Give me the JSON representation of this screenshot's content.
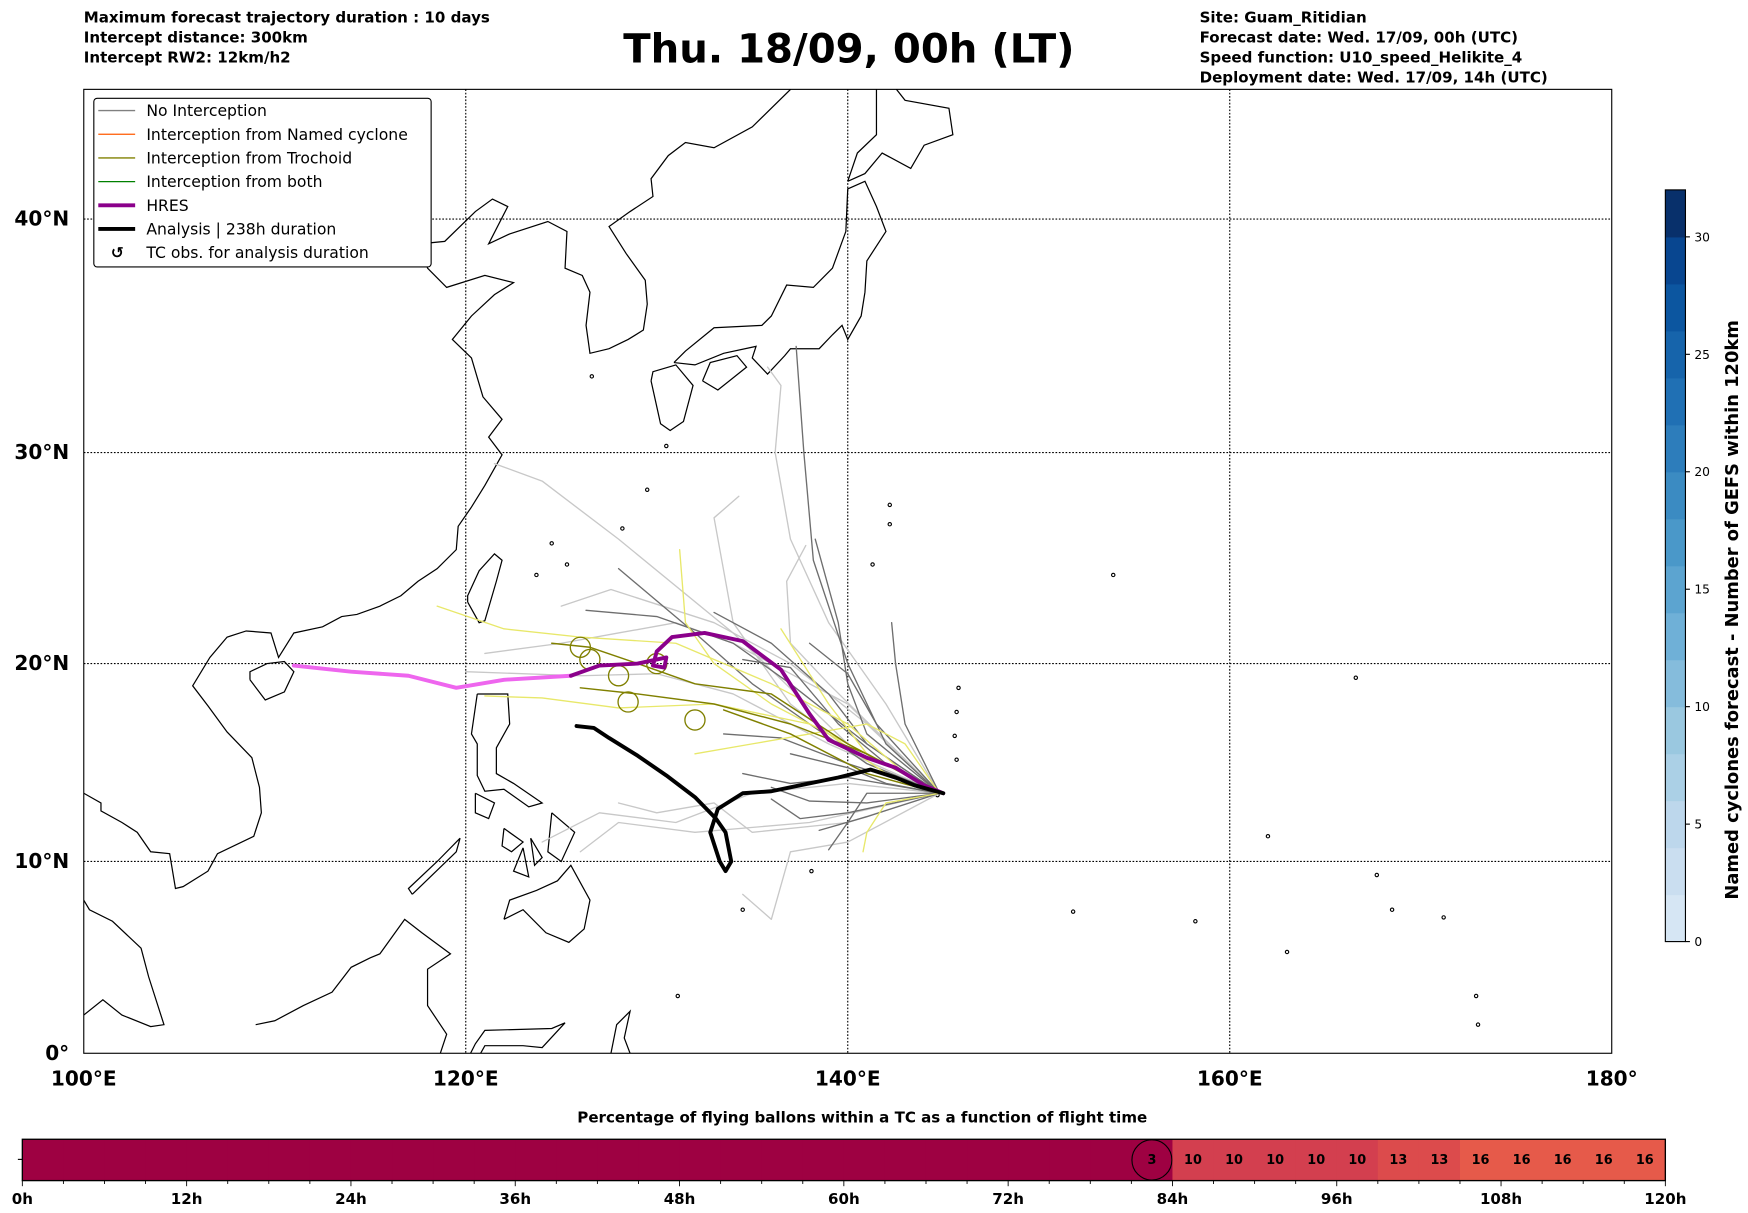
{
  "header": {
    "left": [
      "Maximum forecast trajectory duration : 10 days",
      "Intercept distance: 300km",
      "Intercept RW2: 12km/h2"
    ],
    "title": "Thu. 18/09, 00h (LT)",
    "right": [
      "Site: Guam_Ritidian",
      "Forecast date: Wed. 17/09, 00h (UTC)",
      "Speed function: U10_speed_Helikite_4",
      "Deployment date: Wed. 17/09, 14h (UTC)"
    ]
  },
  "map": {
    "lon_labels": [
      "100°E",
      "120°E",
      "140°E",
      "160°E",
      "180°"
    ],
    "lat_labels": [
      "0°",
      "10°N",
      "20°N",
      "30°N",
      "40°N"
    ],
    "legend": [
      {
        "label": "No Interception",
        "color": "#808080",
        "kind": "thin"
      },
      {
        "label": "Interception from Named cyclone",
        "color": "#ff5a00",
        "kind": "thin"
      },
      {
        "label": "Interception from Trochoid",
        "color": "#808000",
        "kind": "thin"
      },
      {
        "label": "Interception from both",
        "color": "#008000",
        "kind": "thin"
      },
      {
        "label": "HRES",
        "color": "#8b008b",
        "kind": "thick"
      },
      {
        "label": "Analysis | 238h duration",
        "color": "#000000",
        "kind": "thick"
      },
      {
        "label": "TC obs. for analysis duration",
        "color": "#000000",
        "kind": "symbol"
      }
    ]
  },
  "colorbar": {
    "label": "Named cyclones forecast - Number of GEFS within 120km",
    "ticks": [
      "0",
      "5",
      "10",
      "15",
      "20",
      "25",
      "30"
    ],
    "range": [
      0,
      32
    ]
  },
  "timeline": {
    "title": "Percentage of flying ballons within a TC as a function of flight time",
    "tick_labels": [
      "0h",
      "12h",
      "24h",
      "36h",
      "48h",
      "60h",
      "72h",
      "84h",
      "96h",
      "108h",
      "120h"
    ],
    "cells": [
      0,
      0,
      0,
      0,
      0,
      0,
      0,
      0,
      0,
      0,
      0,
      0,
      0,
      0,
      0,
      0,
      0,
      0,
      0,
      0,
      0,
      0,
      0,
      0,
      0,
      0,
      0,
      3,
      10,
      10,
      10,
      10,
      10,
      13,
      13,
      16,
      16,
      16,
      16,
      16
    ],
    "cell_labels": [
      "",
      "",
      "",
      "",
      "",
      "",
      "",
      "",
      "",
      "",
      "",
      "",
      "",
      "",
      "",
      "",
      "",
      "",
      "",
      "",
      "",
      "",
      "",
      "",
      "",
      "",
      "",
      "3",
      "10",
      "10",
      "10",
      "10",
      "10",
      "13",
      "13",
      "16",
      "16",
      "16",
      "16",
      "16"
    ],
    "highlight_index": 27,
    "colors": {
      "0": "#9e0142",
      "3": "#9e0142",
      "10": "#d33f4f",
      "13": "#dc4b4c",
      "16": "#e65a4a"
    }
  }
}
